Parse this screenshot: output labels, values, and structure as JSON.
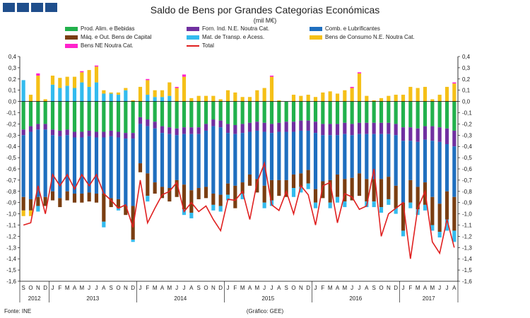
{
  "header": {
    "title": "Saldo de Bens por Grandes Categorias Económicas",
    "unit": "(mil M€)"
  },
  "footer": {
    "source": "Fonte: INE",
    "credit": "(Gráfico: GEE)"
  },
  "colors": {
    "food": "#22b14c",
    "ind": "#7030a0",
    "fuel": "#1f6fbf",
    "capital": "#7a3e12",
    "transport": "#33bbee",
    "consumer": "#f5c018",
    "other": "#ff22cc",
    "total": "#e02020"
  },
  "chart_data": {
    "type": "bar",
    "stacked": true,
    "title": "Saldo de Bens por Grandes Categorias Económicas",
    "ylim": [
      -1.6,
      0.4
    ],
    "yticks": [
      "0,4",
      "0,3",
      "0,2",
      "0,1",
      "0,0",
      "-0,1",
      "-0,2",
      "-0,3",
      "-0,4",
      "-0,5",
      "-0,6",
      "-0,7",
      "-0,8",
      "-0,9",
      "-1,0",
      "-1,1",
      "-1,2",
      "-1,3",
      "-1,4",
      "-1,5",
      "-1,6"
    ],
    "legend": [
      "Prod. Alim. e Bebidas",
      "Forn. Ind. N.E. Noutra Cat.",
      "Comb. e Lubrificantes",
      "Máq. e Out. Bens de Capital",
      "Mat. de Transp. e Acess.",
      "Bens de Consumo N.E. Noutra Cat.",
      "Bens NE Noutra Cat.",
      "Total"
    ],
    "legend_placement": "top",
    "grid": false,
    "months": [
      "S",
      "O",
      "N",
      "D",
      "J",
      "F",
      "M",
      "A",
      "M",
      "J",
      "J",
      "A",
      "S",
      "O",
      "N",
      "D",
      "J",
      "F",
      "M",
      "A",
      "M",
      "J",
      "J",
      "A",
      "S",
      "O",
      "N",
      "D",
      "J",
      "F",
      "M",
      "A",
      "M",
      "J",
      "J",
      "A",
      "S",
      "O",
      "N",
      "D",
      "J",
      "F",
      "M",
      "A",
      "M",
      "J",
      "J",
      "A",
      "S",
      "O",
      "N",
      "D",
      "J",
      "F",
      "M",
      "A",
      "M",
      "J",
      "J",
      "A"
    ],
    "years": [
      {
        "label": "2012",
        "count": 4
      },
      {
        "label": "2013",
        "count": 12
      },
      {
        "label": "2014",
        "count": 12
      },
      {
        "label": "2015",
        "count": 12
      },
      {
        "label": "2016",
        "count": 12
      },
      {
        "label": "2017",
        "count": 8
      }
    ],
    "positive": {
      "transport": [
        0.19,
        0,
        0,
        0,
        0.15,
        0.12,
        0.14,
        0.12,
        0.17,
        0.13,
        0.17,
        0.07,
        0.07,
        0.06,
        0.1,
        0,
        0,
        0.06,
        0.04,
        0.04,
        0.05,
        0,
        0,
        0,
        0,
        0,
        0,
        0,
        0,
        0,
        0,
        0,
        0,
        0,
        0,
        0,
        0,
        0,
        0,
        0,
        0,
        0,
        0,
        0,
        0,
        0,
        0,
        0,
        0,
        0,
        0,
        0,
        0,
        0,
        0,
        0,
        0,
        0,
        0,
        0
      ],
      "consumer": [
        0,
        0.06,
        0.23,
        0.02,
        0.08,
        0.09,
        0.08,
        0.1,
        0.09,
        0.15,
        0.14,
        0.03,
        0.01,
        0.02,
        0.02,
        0.01,
        0.13,
        0.13,
        0.06,
        0.06,
        0.12,
        0.12,
        0.22,
        0.03,
        0.05,
        0.05,
        0.05,
        0.02,
        0.1,
        0.08,
        0.04,
        0.04,
        0.1,
        0.12,
        0.22,
        0.01,
        0,
        0.06,
        0.05,
        0.06,
        0.04,
        0.08,
        0.09,
        0.07,
        0.1,
        0.12,
        0.25,
        0.05,
        0.01,
        0.03,
        0.05,
        0.06,
        0.06,
        0.13,
        0.12,
        0.13,
        0.02,
        0.06,
        0.13,
        0.16
      ],
      "other": [
        0,
        0,
        0.02,
        0,
        0,
        0,
        0,
        0,
        0.01,
        0,
        0.01,
        0,
        0,
        0,
        0,
        0,
        0,
        0.01,
        0,
        0,
        0,
        0.01,
        0.02,
        0,
        0,
        0,
        0,
        0,
        0,
        0,
        0,
        0,
        0,
        0,
        0.01,
        0,
        0,
        0,
        0,
        0,
        0,
        0,
        0,
        0,
        0,
        0.01,
        0.01,
        0,
        0,
        0,
        0,
        0,
        0,
        0,
        0,
        0,
        0,
        0,
        0,
        0.01
      ]
    },
    "negative": {
      "food": [
        -0.25,
        -0.22,
        -0.2,
        -0.2,
        -0.25,
        -0.26,
        -0.25,
        -0.27,
        -0.27,
        -0.26,
        -0.27,
        -0.27,
        -0.26,
        -0.27,
        -0.28,
        -0.28,
        -0.14,
        -0.16,
        -0.18,
        -0.22,
        -0.23,
        -0.24,
        -0.23,
        -0.23,
        -0.23,
        -0.2,
        -0.16,
        -0.17,
        -0.2,
        -0.21,
        -0.2,
        -0.19,
        -0.18,
        -0.19,
        -0.2,
        -0.19,
        -0.18,
        -0.18,
        -0.17,
        -0.17,
        -0.18,
        -0.2,
        -0.2,
        -0.2,
        -0.19,
        -0.2,
        -0.19,
        -0.19,
        -0.19,
        -0.19,
        -0.19,
        -0.2,
        -0.23,
        -0.23,
        -0.24,
        -0.22,
        -0.22,
        -0.23,
        -0.24,
        -0.26
      ],
      "ind": [
        -0.05,
        -0.05,
        -0.05,
        -0.05,
        -0.05,
        -0.05,
        -0.05,
        -0.05,
        -0.05,
        -0.05,
        -0.05,
        -0.05,
        -0.05,
        -0.05,
        -0.05,
        -0.05,
        -0.06,
        -0.06,
        -0.06,
        -0.06,
        -0.06,
        -0.06,
        -0.06,
        -0.06,
        -0.06,
        -0.06,
        -0.06,
        -0.06,
        -0.08,
        -0.08,
        -0.08,
        -0.08,
        -0.08,
        -0.08,
        -0.08,
        -0.08,
        -0.09,
        -0.09,
        -0.09,
        -0.09,
        -0.1,
        -0.1,
        -0.1,
        -0.1,
        -0.1,
        -0.1,
        -0.1,
        -0.1,
        -0.1,
        -0.1,
        -0.1,
        -0.1,
        -0.12,
        -0.12,
        -0.12,
        -0.12,
        -0.13,
        -0.13,
        -0.14,
        -0.14
      ],
      "fuel": [
        -0.55,
        -0.6,
        -0.6,
        -0.6,
        -0.5,
        -0.55,
        -0.5,
        -0.5,
        -0.5,
        -0.5,
        -0.5,
        -0.5,
        -0.55,
        -0.55,
        -0.6,
        -0.6,
        -0.35,
        -0.42,
        -0.48,
        -0.48,
        -0.48,
        -0.4,
        -0.45,
        -0.5,
        -0.48,
        -0.5,
        -0.6,
        -0.6,
        -0.45,
        -0.46,
        -0.44,
        -0.38,
        -0.43,
        -0.48,
        -0.42,
        -0.43,
        -0.43,
        -0.38,
        -0.38,
        -0.35,
        -0.5,
        -0.41,
        -0.4,
        -0.35,
        -0.4,
        -0.38,
        -0.35,
        -0.4,
        -0.4,
        -0.4,
        -0.38,
        -0.45,
        -0.55,
        -0.35,
        -0.4,
        -0.38,
        -0.5,
        -0.55,
        -0.42,
        -0.45
      ],
      "capital": [
        -0.12,
        -0.1,
        -0.08,
        -0.08,
        -0.08,
        -0.08,
        -0.08,
        -0.08,
        -0.08,
        -0.08,
        -0.08,
        -0.25,
        -0.08,
        -0.08,
        -0.08,
        -0.3,
        -0.08,
        -0.2,
        -0.1,
        -0.1,
        -0.12,
        -0.15,
        -0.22,
        -0.2,
        -0.1,
        -0.1,
        -0.1,
        -0.1,
        -0.1,
        -0.2,
        -0.1,
        -0.1,
        -0.12,
        -0.15,
        -0.18,
        -0.14,
        -0.15,
        -0.12,
        -0.12,
        -0.12,
        -0.12,
        -0.15,
        -0.2,
        -0.2,
        -0.2,
        -0.2,
        -0.2,
        -0.2,
        -0.2,
        -0.25,
        -0.2,
        -0.2,
        -0.25,
        -0.2,
        -0.2,
        -0.2,
        -0.25,
        -0.25,
        -0.25,
        -0.3
      ],
      "transport": [
        0,
        0,
        -0.05,
        0,
        0,
        0,
        0,
        0,
        0,
        0,
        0,
        -0.05,
        0,
        -0.02,
        0,
        -0.02,
        0,
        -0.05,
        0,
        0,
        0,
        0,
        -0.05,
        -0.05,
        0,
        0,
        -0.05,
        -0.05,
        -0.05,
        0,
        -0.05,
        0,
        0,
        -0.05,
        -0.05,
        0,
        0,
        -0.08,
        -0.05,
        -0.05,
        -0.05,
        0,
        -0.05,
        -0.05,
        -0.05,
        0,
        0,
        -0.05,
        -0.05,
        -0.05,
        -0.05,
        -0.05,
        -0.05,
        -0.05,
        -0.05,
        -0.05,
        -0.05,
        -0.05,
        -0.1,
        -0.1
      ],
      "consumer": [
        -0.05,
        -0.05,
        0,
        0,
        0,
        0,
        0,
        0,
        0,
        0,
        0,
        0,
        0,
        0,
        0,
        0,
        0,
        0,
        0,
        0,
        0,
        0,
        0,
        0,
        0,
        0,
        0,
        0,
        0,
        0,
        0,
        0,
        0,
        0,
        0,
        0,
        0,
        0,
        0,
        0,
        0,
        0,
        0,
        0,
        0,
        0,
        0,
        0,
        0,
        0,
        0,
        0,
        0,
        0,
        0,
        0,
        0,
        0,
        0,
        0
      ]
    },
    "total": [
      -1.1,
      -1.08,
      -0.75,
      -1.0,
      -0.65,
      -0.75,
      -0.65,
      -0.78,
      -0.65,
      -0.75,
      -0.65,
      -0.82,
      -0.88,
      -0.95,
      -0.92,
      -1.12,
      -0.7,
      -1.08,
      -0.95,
      -0.83,
      -0.8,
      -0.72,
      -0.98,
      -0.9,
      -0.98,
      -0.93,
      -1.05,
      -1.15,
      -0.87,
      -0.88,
      -0.8,
      -1.05,
      -0.72,
      -0.55,
      -0.92,
      -0.97,
      -0.8,
      -1.0,
      -0.75,
      -0.83,
      -1.1,
      -0.75,
      -0.72,
      -1.08,
      -0.82,
      -0.85,
      -0.96,
      -0.93,
      -0.6,
      -1.2,
      -1.0,
      -0.95,
      -0.9,
      -1.4,
      -0.95,
      -0.8,
      -1.25,
      -1.35,
      -1.05,
      -1.3
    ]
  }
}
